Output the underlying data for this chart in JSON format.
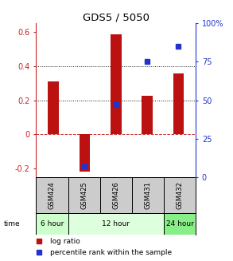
{
  "title": "GDS5 / 5050",
  "samples": [
    "GSM424",
    "GSM425",
    "GSM426",
    "GSM431",
    "GSM432"
  ],
  "log_ratios": [
    0.31,
    -0.22,
    0.585,
    0.225,
    0.355
  ],
  "percentile_ranks_pct": [
    null,
    7,
    47,
    75,
    85
  ],
  "time_groups_order": [
    "6 hour",
    "12 hour",
    "24 hour"
  ],
  "time_groups": {
    "6 hour": [
      0
    ],
    "12 hour": [
      1,
      2,
      3
    ],
    "24 hour": [
      4
    ]
  },
  "time_colors": {
    "6 hour": "#ccffcc",
    "12 hour": "#ddffdd",
    "24 hour": "#88ee88"
  },
  "bar_color": "#bb1111",
  "dot_color": "#2233cc",
  "ylim_left": [
    -0.25,
    0.65
  ],
  "ylim_right": [
    0,
    100
  ],
  "yticks_left": [
    -0.2,
    0.0,
    0.2,
    0.4,
    0.6
  ],
  "ytick_labels_left": [
    "-0.2",
    "0",
    "0.2",
    "0.4",
    "0.6"
  ],
  "yticks_right": [
    0,
    25,
    50,
    75,
    100
  ],
  "ytick_labels_right": [
    "0",
    "25",
    "50",
    "75",
    "100%"
  ],
  "hlines": [
    0.0,
    0.2,
    0.4
  ],
  "hline_styles": [
    "--",
    ":",
    ":"
  ],
  "hline_colors": [
    "#cc3333",
    "#111111",
    "#111111"
  ],
  "background_color": "#ffffff",
  "sample_bg": "#cccccc",
  "bar_width": 0.35,
  "legend_items": [
    "log ratio",
    "percentile rank within the sample"
  ]
}
